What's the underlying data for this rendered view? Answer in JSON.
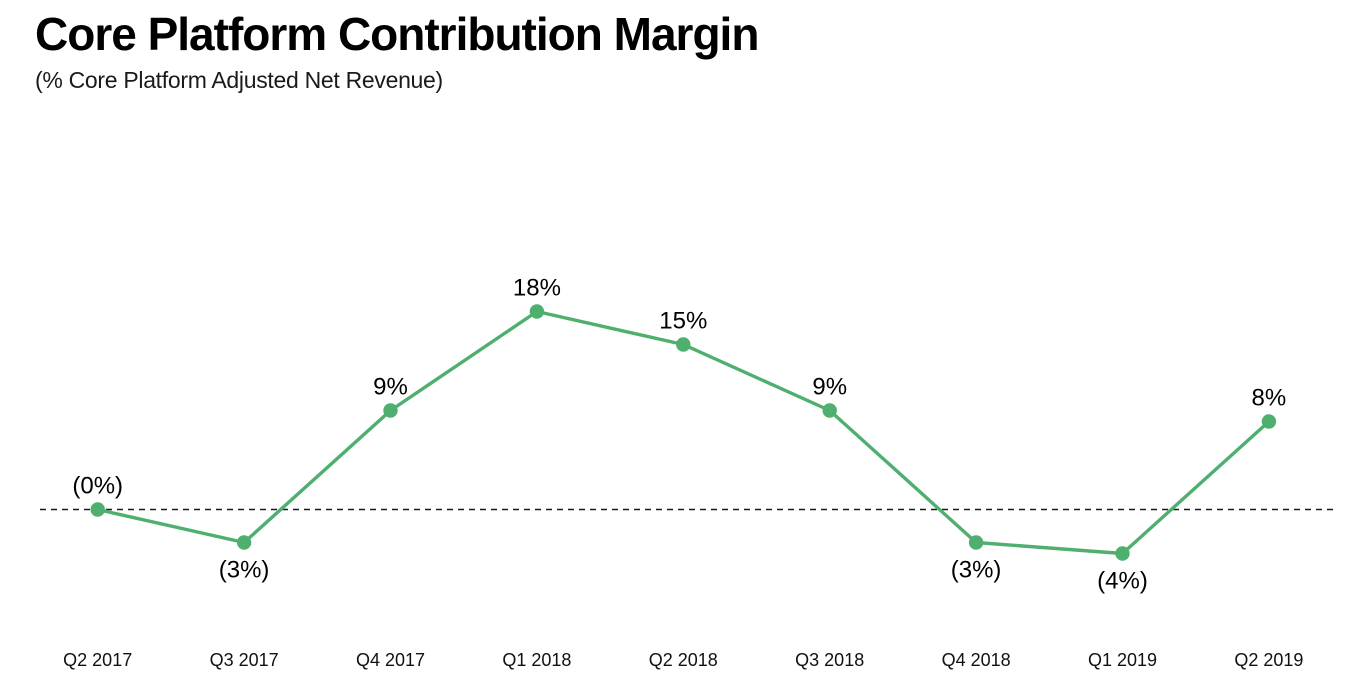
{
  "header": {
    "title": "Core Platform Contribution Margin",
    "subtitle": "(% Core Platform Adjusted Net Revenue)"
  },
  "chart_data": {
    "type": "line",
    "title": "Core Platform Contribution Margin",
    "subtitle": "(% Core Platform Adjusted Net Revenue)",
    "categories": [
      "Q2 2017",
      "Q3 2017",
      "Q4 2017",
      "Q1 2018",
      "Q2 2018",
      "Q3 2018",
      "Q4 2018",
      "Q1 2019",
      "Q2 2019"
    ],
    "values": [
      0,
      -3,
      9,
      18,
      15,
      9,
      -3,
      -4,
      8
    ],
    "point_labels": [
      "(0%)",
      "(3%)",
      "9%",
      "18%",
      "15%",
      "9%",
      "(3%)",
      "(4%)",
      "8%"
    ],
    "label_placement": [
      "above",
      "below",
      "above",
      "above",
      "above",
      "above",
      "below",
      "below",
      "above"
    ],
    "xlabel": "",
    "ylabel": "",
    "ylim": [
      -8,
      22
    ],
    "grid": false,
    "legend": false,
    "zero_baseline": {
      "value": 0,
      "style": "dashed",
      "color": "#1a1a1a"
    },
    "line_color": "#4FAF6E",
    "marker_color": "#4FAF6E",
    "label_color": "#000000"
  }
}
